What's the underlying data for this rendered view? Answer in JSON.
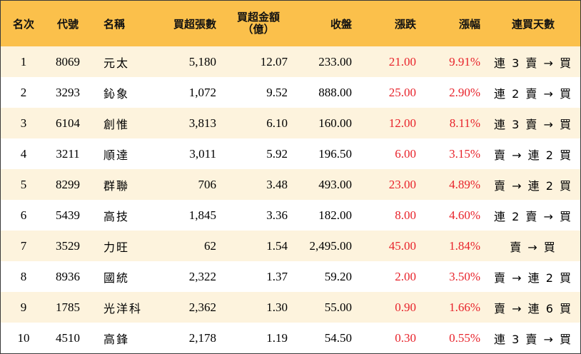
{
  "header": {
    "rank": "名次",
    "code": "代號",
    "name": "名稱",
    "shares": "買超張數",
    "amount_line1": "買超金額",
    "amount_line2": "（億）",
    "close": "收盤",
    "change": "漲跌",
    "pct": "漲幅",
    "streak": "連買天數"
  },
  "rows": [
    {
      "rank": "1",
      "code": "8069",
      "name": "元太",
      "shares": "5,180",
      "amount": "12.07",
      "close": "233.00",
      "change": "21.00",
      "pct": "9.91%",
      "streak": "連 3 賣 → 買"
    },
    {
      "rank": "2",
      "code": "3293",
      "name": "鈊象",
      "shares": "1,072",
      "amount": "9.52",
      "close": "888.00",
      "change": "25.00",
      "pct": "2.90%",
      "streak": "連 2 賣 → 買"
    },
    {
      "rank": "3",
      "code": "6104",
      "name": "創惟",
      "shares": "3,813",
      "amount": "6.10",
      "close": "160.00",
      "change": "12.00",
      "pct": "8.11%",
      "streak": "連 3 賣 → 買"
    },
    {
      "rank": "4",
      "code": "3211",
      "name": "順達",
      "shares": "3,011",
      "amount": "5.92",
      "close": "196.50",
      "change": "6.00",
      "pct": "3.15%",
      "streak": "賣 → 連 2 買"
    },
    {
      "rank": "5",
      "code": "8299",
      "name": "群聯",
      "shares": "706",
      "amount": "3.48",
      "close": "493.00",
      "change": "23.00",
      "pct": "4.89%",
      "streak": "賣 → 連 2 買"
    },
    {
      "rank": "6",
      "code": "5439",
      "name": "高技",
      "shares": "1,845",
      "amount": "3.36",
      "close": "182.00",
      "change": "8.00",
      "pct": "4.60%",
      "streak": "連 2 賣 → 買"
    },
    {
      "rank": "7",
      "code": "3529",
      "name": "力旺",
      "shares": "62",
      "amount": "1.54",
      "close": "2,495.00",
      "change": "45.00",
      "pct": "1.84%",
      "streak": "賣 → 買"
    },
    {
      "rank": "8",
      "code": "8936",
      "name": "國統",
      "shares": "2,322",
      "amount": "1.37",
      "close": "59.20",
      "change": "2.00",
      "pct": "3.50%",
      "streak": "賣 → 連 2 買"
    },
    {
      "rank": "9",
      "code": "1785",
      "name": "光洋科",
      "shares": "2,362",
      "amount": "1.30",
      "close": "55.00",
      "change": "0.90",
      "pct": "1.66%",
      "streak": "賣 → 連 6 買"
    },
    {
      "rank": "10",
      "code": "4510",
      "name": "高鋒",
      "shares": "2,178",
      "amount": "1.19",
      "close": "54.50",
      "change": "0.30",
      "pct": "0.55%",
      "streak": "連 3 賣 → 買"
    }
  ],
  "colors": {
    "header_bg": "#fbc04b",
    "stripe_bg": "#fdf3dd",
    "up_red": "#e8232b"
  }
}
